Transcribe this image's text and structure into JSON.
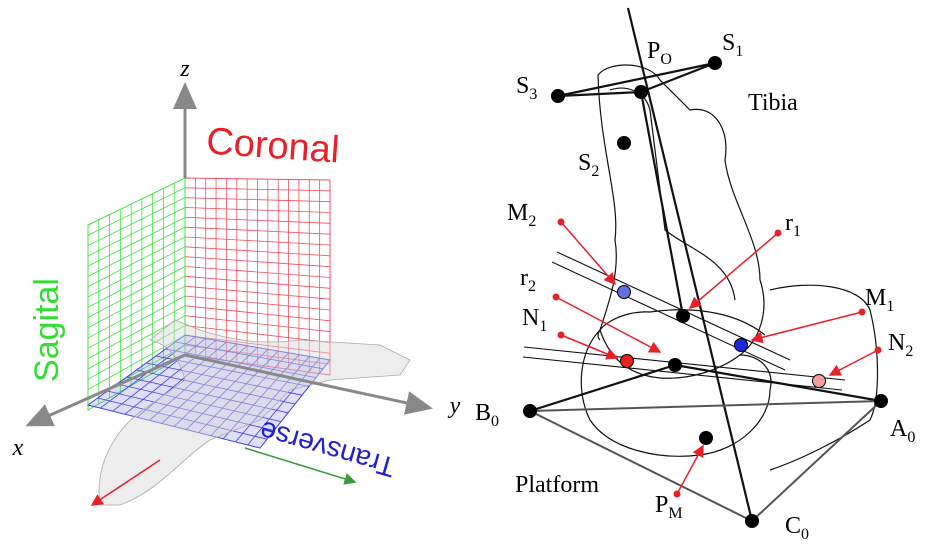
{
  "left": {
    "axes": {
      "z": "z",
      "y": "y",
      "x": "x"
    },
    "planes": {
      "coronal": "Coronal",
      "sagittal": "Sagital",
      "transverse": "Transverse"
    }
  },
  "right": {
    "tibia": "Tibia",
    "platform": "Platform",
    "points": {
      "po": {
        "base": "P",
        "sub": "O"
      },
      "s1": {
        "base": "S",
        "sub": "1"
      },
      "s3": {
        "base": "S",
        "sub": "3"
      },
      "s2": {
        "base": "S",
        "sub": "2"
      },
      "m2": {
        "base": "M",
        "sub": "2"
      },
      "r1": {
        "base": "r",
        "sub": "1"
      },
      "r2": {
        "base": "r",
        "sub": "2"
      },
      "m1": {
        "base": "M",
        "sub": "1"
      },
      "n1": {
        "base": "N",
        "sub": "1"
      },
      "n2": {
        "base": "N",
        "sub": "2"
      },
      "b0": {
        "base": "B",
        "sub": "0"
      },
      "a0": {
        "base": "A",
        "sub": "0"
      },
      "pm": {
        "base": "P",
        "sub": "M"
      },
      "c0": {
        "base": "C",
        "sub": "0"
      }
    }
  }
}
